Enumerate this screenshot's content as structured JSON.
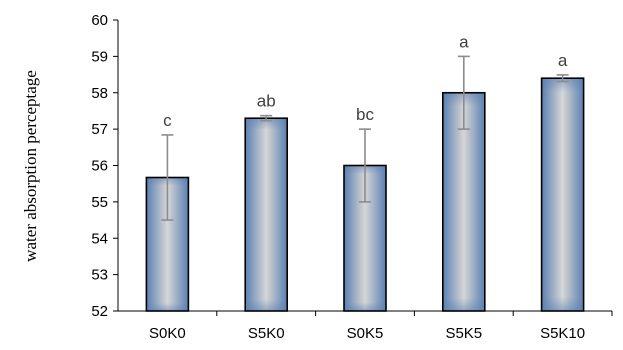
{
  "chart_data": {
    "type": "bar",
    "title": "",
    "xlabel": "",
    "ylabel": "water absorption perceptage",
    "ylim": [
      52,
      60
    ],
    "yticks": [
      52,
      53,
      54,
      55,
      56,
      57,
      58,
      59,
      60
    ],
    "grid": false,
    "categories": [
      "S0K0",
      "S5K0",
      "S0K5",
      "S5K5",
      "S5K10"
    ],
    "series": [
      {
        "values": [
          55.67,
          57.3,
          56.0,
          58.0,
          58.4
        ],
        "error": [
          1.17,
          0.07,
          1.0,
          1.0,
          0.09
        ],
        "significance": [
          "c",
          "ab",
          "bc",
          "a",
          "a"
        ]
      }
    ],
    "colors": {
      "bar_center": "#d6d6d6",
      "bar_edge": "#5b80b2",
      "bar_outline": "#000000",
      "error_bar": "#8c8c8c",
      "significance_text": "#404040",
      "axis": "#000000"
    }
  }
}
